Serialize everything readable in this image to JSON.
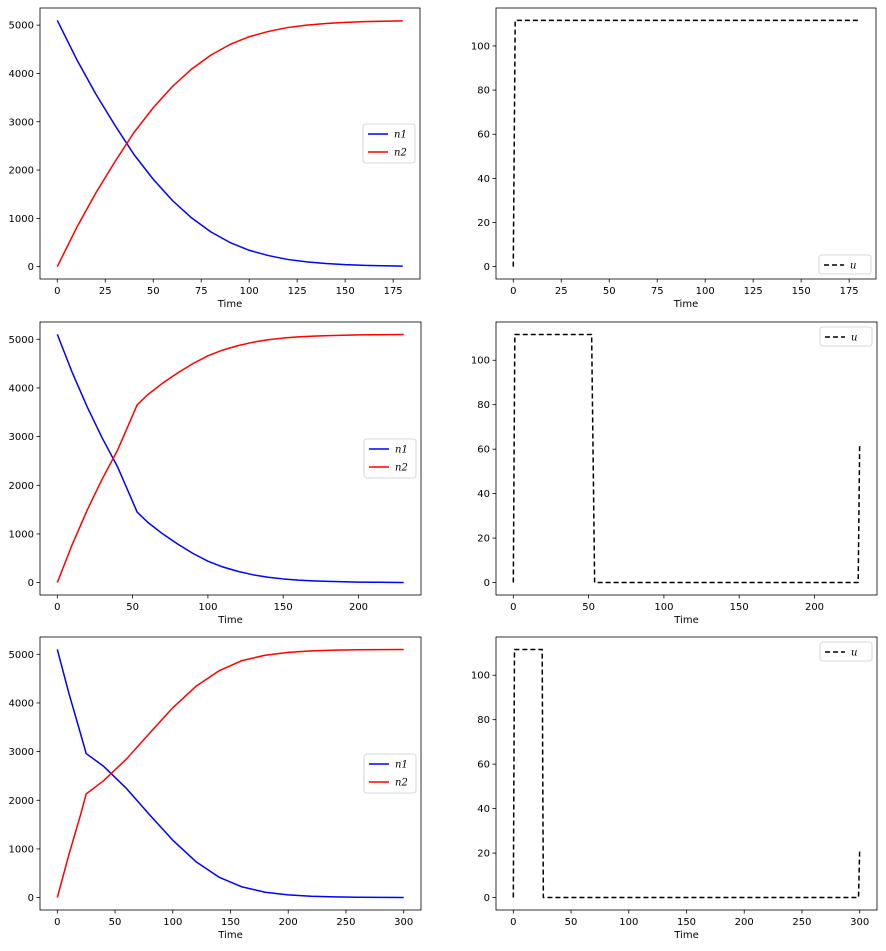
{
  "chart_data": [
    {
      "type": "line",
      "xlabel": "Time",
      "ylabel": "",
      "xlim": [
        -9,
        189
      ],
      "ylim": [
        -255,
        5355
      ],
      "xticks": [
        0,
        25,
        50,
        75,
        100,
        125,
        150,
        175
      ],
      "yticks": [
        0,
        1000,
        2000,
        3000,
        4000,
        5000
      ],
      "legend": "center-right",
      "grid": false,
      "series": [
        {
          "name": "n1",
          "color": "#0000ff",
          "dash": "",
          "x": [
            0,
            10,
            20,
            30,
            40,
            50,
            60,
            70,
            80,
            90,
            100,
            110,
            120,
            130,
            140,
            150,
            160,
            170,
            180
          ],
          "y": [
            5100,
            4300,
            3580,
            2930,
            2320,
            1810,
            1370,
            1010,
            720,
            500,
            340,
            230,
            150,
            100,
            65,
            42,
            28,
            18,
            12
          ]
        },
        {
          "name": "n2",
          "color": "#ff0000",
          "dash": "",
          "x": [
            0,
            10,
            20,
            30,
            40,
            50,
            60,
            70,
            80,
            90,
            100,
            110,
            120,
            130,
            140,
            150,
            160,
            170,
            180
          ],
          "y": [
            0,
            800,
            1520,
            2170,
            2780,
            3290,
            3730,
            4090,
            4380,
            4600,
            4760,
            4870,
            4950,
            5000,
            5035,
            5058,
            5072,
            5082,
            5088
          ]
        }
      ]
    },
    {
      "type": "line",
      "xlabel": "Time",
      "ylabel": "",
      "xlim": [
        -9,
        189
      ],
      "ylim": [
        -5.6,
        117.2
      ],
      "xticks": [
        0,
        25,
        50,
        75,
        100,
        125,
        150,
        175
      ],
      "yticks": [
        0,
        20,
        40,
        60,
        80,
        100
      ],
      "legend": "lower-right",
      "grid": false,
      "series": [
        {
          "name": "u",
          "color": "#000000",
          "dash": "5,3",
          "x": [
            0,
            1,
            180
          ],
          "y": [
            0,
            111.6,
            111.6
          ]
        }
      ]
    },
    {
      "type": "line",
      "xlabel": "Time",
      "ylabel": "",
      "xlim": [
        -11.5,
        241.5
      ],
      "ylim": [
        -255,
        5355
      ],
      "xticks": [
        0,
        50,
        100,
        150,
        200
      ],
      "yticks": [
        0,
        1000,
        2000,
        3000,
        4000,
        5000
      ],
      "legend": "center-right",
      "grid": false,
      "series": [
        {
          "name": "n1",
          "color": "#0000ff",
          "dash": "",
          "x": [
            0,
            10,
            20,
            30,
            40,
            53,
            60,
            70,
            80,
            90,
            100,
            110,
            120,
            130,
            140,
            150,
            160,
            170,
            180,
            190,
            200,
            210,
            220,
            230
          ],
          "y": [
            5100,
            4310,
            3600,
            2960,
            2380,
            1450,
            1240,
            1000,
            790,
            600,
            440,
            320,
            230,
            160,
            110,
            75,
            50,
            35,
            24,
            16,
            10,
            7,
            5,
            3
          ]
        },
        {
          "name": "n2",
          "color": "#ff0000",
          "dash": "",
          "x": [
            0,
            10,
            20,
            30,
            40,
            53,
            60,
            70,
            80,
            90,
            100,
            110,
            120,
            130,
            140,
            150,
            160,
            170,
            180,
            190,
            200,
            210,
            220,
            230
          ],
          "y": [
            0,
            790,
            1500,
            2140,
            2720,
            3650,
            3860,
            4100,
            4310,
            4500,
            4660,
            4780,
            4870,
            4940,
            4990,
            5025,
            5050,
            5065,
            5076,
            5084,
            5090,
            5093,
            5095,
            5097
          ]
        }
      ]
    },
    {
      "type": "line",
      "xlabel": "Time",
      "ylabel": "",
      "xlim": [
        -11.5,
        241.5
      ],
      "ylim": [
        -5.6,
        117.2
      ],
      "xticks": [
        0,
        50,
        100,
        150,
        200
      ],
      "yticks": [
        0,
        20,
        40,
        60,
        80,
        100
      ],
      "legend": "upper-right",
      "grid": false,
      "series": [
        {
          "name": "u",
          "color": "#000000",
          "dash": "5,3",
          "x": [
            0,
            1,
            52,
            54,
            229,
            230
          ],
          "y": [
            0,
            111.6,
            111.6,
            0,
            0,
            62.5
          ]
        }
      ]
    },
    {
      "type": "line",
      "xlabel": "Time",
      "ylabel": "",
      "xlim": [
        -15,
        315
      ],
      "ylim": [
        -255,
        5355
      ],
      "xticks": [
        0,
        50,
        100,
        150,
        200,
        250,
        300
      ],
      "yticks": [
        0,
        1000,
        2000,
        3000,
        4000,
        5000
      ],
      "legend": "center-right",
      "grid": false,
      "series": [
        {
          "name": "n1",
          "color": "#0000ff",
          "dash": "",
          "x": [
            0,
            10,
            20,
            25,
            40,
            60,
            80,
            100,
            120,
            140,
            160,
            180,
            200,
            220,
            240,
            260,
            280,
            300
          ],
          "y": [
            5100,
            4200,
            3380,
            2960,
            2700,
            2240,
            1700,
            1180,
            740,
            420,
            220,
            110,
            55,
            28,
            14,
            8,
            4,
            2
          ]
        },
        {
          "name": "n2",
          "color": "#ff0000",
          "dash": "",
          "x": [
            0,
            10,
            20,
            25,
            40,
            60,
            80,
            100,
            120,
            140,
            160,
            180,
            200,
            220,
            240,
            260,
            280,
            300
          ],
          "y": [
            0,
            880,
            1690,
            2130,
            2400,
            2850,
            3380,
            3900,
            4340,
            4660,
            4870,
            4980,
            5040,
            5070,
            5085,
            5092,
            5096,
            5098
          ]
        }
      ]
    },
    {
      "type": "line",
      "xlabel": "Time",
      "ylabel": "",
      "xlim": [
        -15,
        315
      ],
      "ylim": [
        -5.6,
        117.2
      ],
      "xticks": [
        0,
        50,
        100,
        150,
        200,
        250,
        300
      ],
      "yticks": [
        0,
        20,
        40,
        60,
        80,
        100
      ],
      "legend": "upper-right",
      "grid": false,
      "series": [
        {
          "name": "u",
          "color": "#000000",
          "dash": "5,3",
          "x": [
            0,
            1,
            25,
            26,
            299,
            300
          ],
          "y": [
            0,
            111.6,
            111.6,
            0,
            0,
            22
          ]
        }
      ]
    }
  ]
}
